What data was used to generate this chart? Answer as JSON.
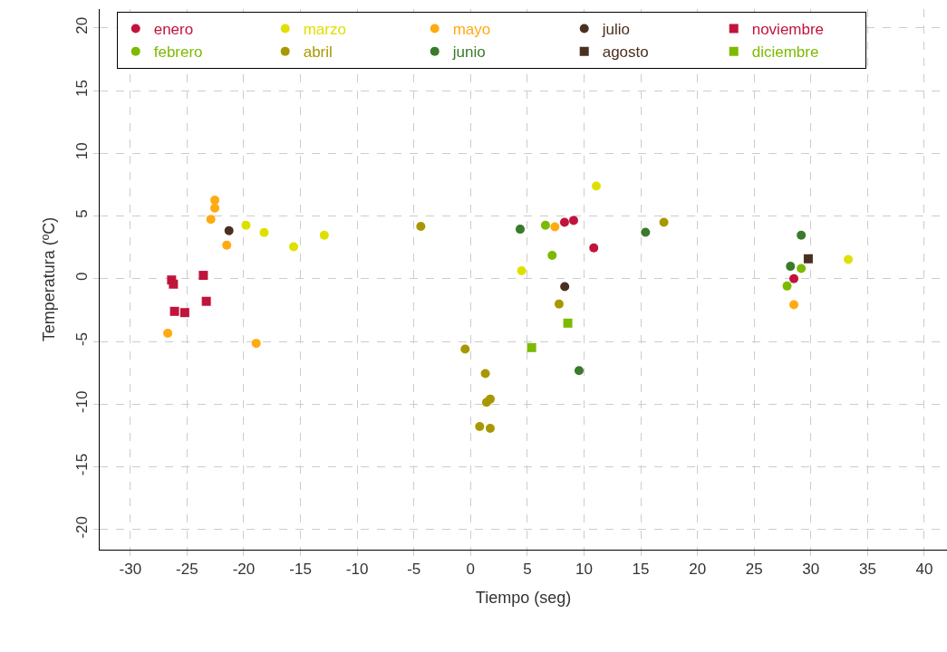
{
  "chart_data": {
    "type": "scatter",
    "xlabel": "Tiempo (seg)",
    "ylabel": "Temperatura (ºC)",
    "xlim": [
      -32.7,
      42
    ],
    "ylim": [
      -21.6,
      21.5
    ],
    "xticks": [
      -30,
      -25,
      -20,
      -15,
      -10,
      -5,
      0,
      5,
      10,
      15,
      20,
      25,
      30,
      35,
      40
    ],
    "yticks": [
      -20,
      -15,
      -10,
      -5,
      0,
      5,
      10,
      15,
      20
    ],
    "grid": true,
    "legend": "top",
    "line_style": "none",
    "series": [
      {
        "name": "enero",
        "color": "#c0143c",
        "marker": "circle",
        "x": [
          8.28,
          9.08,
          10.86,
          28.5
        ],
        "values": [
          4.5,
          4.65,
          2.46,
          0.0
        ]
      },
      {
        "name": "marzo",
        "color": "#e0e000",
        "marker": "circle",
        "x": [
          -19.8,
          -18.2,
          -15.6,
          -12.9,
          11.08,
          4.5,
          33.3
        ],
        "values": [
          4.26,
          3.68,
          2.55,
          3.47,
          7.39,
          0.63,
          1.54
        ]
      },
      {
        "name": "mayo",
        "color": "#ffaa11",
        "marker": "circle",
        "x": [
          -22.55,
          -22.55,
          -22.9,
          -21.5,
          -26.7,
          -18.9,
          7.43,
          28.5
        ],
        "values": [
          6.26,
          5.64,
          4.74,
          2.67,
          -4.34,
          -5.15,
          4.14,
          -2.07
        ]
      },
      {
        "name": "julio",
        "color": "#4a3020",
        "marker": "circle",
        "x": [
          -21.3,
          8.3
        ],
        "values": [
          3.83,
          -0.63
        ]
      },
      {
        "name": "noviembre",
        "color": "#c0143c",
        "marker": "square",
        "x": [
          -26.36,
          -26.2,
          -23.56,
          -23.3,
          -26.1,
          -25.2
        ],
        "values": [
          -0.1,
          -0.43,
          0.27,
          -1.8,
          -2.6,
          -2.7
        ]
      },
      {
        "name": "febrero",
        "color": "#7cba00",
        "marker": "circle",
        "x": [
          6.6,
          7.19,
          29.15,
          27.9
        ],
        "values": [
          4.26,
          1.86,
          0.82,
          -0.58
        ]
      },
      {
        "name": "abril",
        "color": "#a89800",
        "marker": "circle",
        "x": [
          -4.39,
          17.04,
          7.8,
          -0.48,
          1.3,
          1.73,
          1.41,
          0.8,
          1.73
        ],
        "values": [
          4.17,
          4.5,
          -2.02,
          -5.61,
          -7.56,
          -9.59,
          -9.85,
          -11.78,
          -11.92
        ]
      },
      {
        "name": "junio",
        "color": "#3a7a2a",
        "marker": "circle",
        "x": [
          4.37,
          15.42,
          9.56,
          29.15,
          28.2
        ],
        "values": [
          3.95,
          3.71,
          -7.32,
          3.47,
          0.99
        ]
      },
      {
        "name": "agosto",
        "color": "#4a3020",
        "marker": "square",
        "x": [
          29.77
        ],
        "values": [
          1.59
        ]
      },
      {
        "name": "diciembre",
        "color": "#7cba00",
        "marker": "square",
        "x": [
          8.57,
          5.38
        ],
        "values": [
          -3.54,
          -5.49
        ]
      }
    ]
  }
}
